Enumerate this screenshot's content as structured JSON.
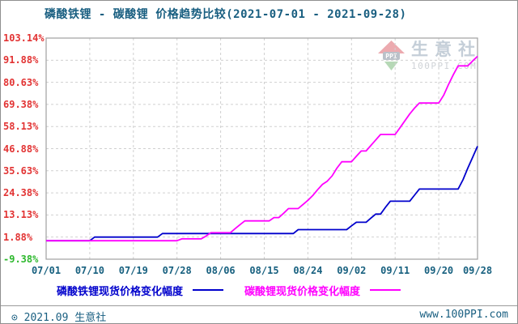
{
  "header": {
    "title": "磷酸铁锂 - 碳酸锂 价格趋势比较(2021-07-01 - 2021-09-28)"
  },
  "watermark": {
    "logo_text": "PPI",
    "brand": "生意社",
    "domain": "100PPI.COM"
  },
  "legend": [
    {
      "label": "磷酸铁锂现货价格变化幅度",
      "color": "#0000cc"
    },
    {
      "label": "碳酸锂现货价格变化幅度",
      "color": "#ff00ff"
    }
  ],
  "footer": {
    "copyright": "⊙ 2021.09 生意社",
    "site": "www.100PPI.com"
  },
  "colors": {
    "title_text": "#185e80",
    "axis_tick_positive": "#e23333",
    "axis_tick_negative": "#2db82d",
    "date_labels": "#17607f",
    "plot_border": "#a0a0a0",
    "gridline": "#d0d0d0",
    "series_lfp": "#0000cc",
    "series_carbonate": "#ff00ff"
  },
  "chart_data": {
    "type": "line",
    "title": "磷酸铁锂 - 碳酸锂 价格趋势比较(2021-07-01 - 2021-09-28)",
    "xlabel": "",
    "ylabel": "",
    "unit": "%",
    "grid": true,
    "legend_position": "bottom",
    "date_range": [
      "2021-07-01",
      "2021-09-28"
    ],
    "x_days_total": 89,
    "x_tick_labels": [
      "07/01",
      "07/10",
      "07/19",
      "07/28",
      "08/06",
      "08/15",
      "08/24",
      "09/02",
      "09/11",
      "09/20",
      "09/28"
    ],
    "x_tick_days": [
      0,
      9,
      18,
      27,
      36,
      45,
      54,
      63,
      72,
      81,
      89
    ],
    "y_tick_labels": [
      "103.14%",
      "91.88%",
      "80.63%",
      "69.38%",
      "58.13%",
      "46.88%",
      "35.63%",
      "24.38%",
      "13.13%",
      "1.88%",
      "-9.38%"
    ],
    "y_tick_values": [
      103.14,
      91.88,
      80.63,
      69.38,
      58.13,
      46.88,
      35.63,
      24.38,
      13.13,
      1.88,
      -9.38
    ],
    "ylim": [
      -9.38,
      103.14
    ],
    "series": [
      {
        "name": "磷酸铁锂现货价格变化幅度",
        "color": "#0000cc",
        "values": [
          0,
          0,
          0,
          0,
          0,
          0,
          0,
          0,
          0,
          0,
          1.89,
          1.89,
          1.89,
          1.89,
          1.89,
          1.89,
          1.89,
          1.89,
          1.89,
          1.89,
          1.89,
          1.89,
          1.89,
          1.89,
          3.7,
          3.7,
          3.7,
          3.7,
          3.7,
          3.7,
          3.7,
          3.7,
          3.7,
          3.7,
          3.7,
          3.7,
          3.7,
          3.7,
          3.7,
          3.7,
          3.7,
          3.7,
          3.7,
          3.7,
          3.7,
          3.7,
          3.7,
          3.7,
          3.7,
          3.7,
          3.7,
          3.7,
          5.66,
          5.66,
          5.66,
          5.66,
          5.66,
          5.66,
          5.66,
          5.66,
          5.66,
          5.66,
          5.66,
          7.6,
          9.43,
          9.43,
          9.43,
          11.5,
          13.58,
          13.58,
          17,
          20.15,
          20.15,
          20.15,
          20.15,
          20.15,
          23.2,
          26.3,
          26.3,
          26.3,
          26.3,
          26.3,
          26.3,
          26.3,
          26.3,
          26.3,
          31,
          37,
          42.5,
          48.11
        ]
      },
      {
        "name": "碳酸锂现货价格变化幅度",
        "color": "#ff00ff",
        "values": [
          0,
          0,
          0,
          0,
          0,
          0,
          0,
          0,
          0,
          0,
          0,
          0,
          0,
          0,
          0,
          0,
          0,
          0,
          0,
          0,
          0,
          0,
          0,
          0,
          0,
          0,
          0,
          0,
          0.95,
          0.95,
          0.95,
          0.95,
          0.95,
          2.4,
          4.1,
          4.1,
          4.1,
          4.1,
          4.1,
          6.2,
          8.2,
          10.1,
          10.1,
          10.1,
          10.1,
          10.1,
          10.1,
          11.8,
          11.8,
          14,
          16.4,
          16.4,
          16.4,
          18.5,
          20.6,
          23,
          26,
          28.7,
          30.3,
          33,
          37,
          40.2,
          40.2,
          40.2,
          43,
          45.7,
          45.7,
          48.5,
          51.3,
          54.1,
          54.1,
          54.1,
          54.1,
          57.5,
          61,
          64.5,
          67.5,
          70.1,
          70.1,
          70.1,
          70.1,
          70.1,
          74,
          79.5,
          84.5,
          89,
          89,
          89,
          91.5,
          93.87
        ]
      }
    ]
  }
}
